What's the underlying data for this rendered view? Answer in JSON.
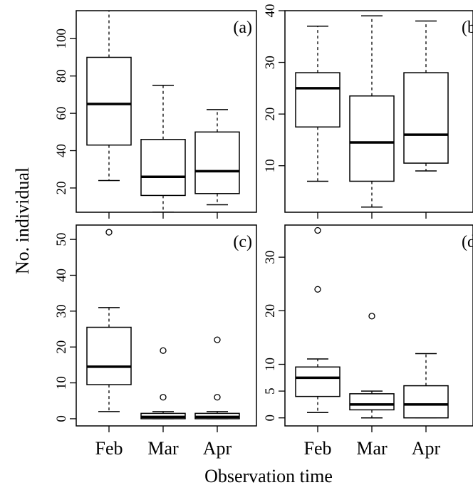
{
  "figure": {
    "xlabel": "Observation time",
    "ylabel": "No. individual",
    "colors": {
      "line": "#000000",
      "background": "#ffffff"
    }
  },
  "chart_data": [
    {
      "type": "boxplot",
      "panel": "(a)",
      "categories": [
        "Feb",
        "Mar",
        "Apr"
      ],
      "ylim": [
        7,
        115
      ],
      "yticks": [
        20,
        40,
        60,
        80,
        100
      ],
      "boxes": [
        {
          "category": "Feb",
          "whisker_low": 24,
          "q1": 43,
          "median": 65,
          "q3": 90,
          "whisker_high": 121,
          "outliers": []
        },
        {
          "category": "Mar",
          "whisker_low": 7,
          "q1": 16,
          "median": 26,
          "q3": 46,
          "whisker_high": 75,
          "outliers": []
        },
        {
          "category": "Apr",
          "whisker_low": 11,
          "q1": 17,
          "median": 29,
          "q3": 50,
          "whisker_high": 62,
          "outliers": []
        }
      ]
    },
    {
      "type": "boxplot",
      "panel": "(b)",
      "categories": [
        "Feb",
        "Mar",
        "Apr"
      ],
      "ylim": [
        1,
        40
      ],
      "yticks": [
        10,
        20,
        30,
        40
      ],
      "boxes": [
        {
          "category": "Feb",
          "whisker_low": 7,
          "q1": 17.5,
          "median": 25,
          "q3": 28,
          "whisker_high": 37,
          "outliers": []
        },
        {
          "category": "Mar",
          "whisker_low": 2,
          "q1": 7,
          "median": 14.5,
          "q3": 23.5,
          "whisker_high": 39,
          "outliers": []
        },
        {
          "category": "Apr",
          "whisker_low": 9,
          "q1": 10.5,
          "median": 16,
          "q3": 28,
          "whisker_high": 38,
          "outliers": []
        }
      ]
    },
    {
      "type": "boxplot",
      "panel": "(c)",
      "categories": [
        "Feb",
        "Mar",
        "Apr"
      ],
      "ylim": [
        -2,
        54
      ],
      "yticks": [
        0,
        10,
        20,
        30,
        40,
        50
      ],
      "boxes": [
        {
          "category": "Feb",
          "whisker_low": 2,
          "q1": 9.5,
          "median": 14.5,
          "q3": 25.5,
          "whisker_high": 31,
          "outliers": [
            52
          ]
        },
        {
          "category": "Mar",
          "whisker_low": 0,
          "q1": 0,
          "median": 0.5,
          "q3": 1.5,
          "whisker_high": 2,
          "outliers": [
            6,
            19
          ]
        },
        {
          "category": "Apr",
          "whisker_low": 0,
          "q1": 0,
          "median": 0.5,
          "q3": 1.5,
          "whisker_high": 2,
          "outliers": [
            6,
            22
          ]
        }
      ]
    },
    {
      "type": "boxplot",
      "panel": "(d)",
      "categories": [
        "Feb",
        "Mar",
        "Apr"
      ],
      "ylim": [
        -1.5,
        36
      ],
      "yticks": [
        0,
        5,
        10,
        20,
        30
      ],
      "boxes": [
        {
          "category": "Feb",
          "whisker_low": 1,
          "q1": 4,
          "median": 7.5,
          "q3": 9.5,
          "whisker_high": 11,
          "outliers": [
            24,
            35
          ]
        },
        {
          "category": "Mar",
          "whisker_low": 0,
          "q1": 1.5,
          "median": 2.5,
          "q3": 4.5,
          "whisker_high": 5,
          "outliers": [
            19
          ]
        },
        {
          "category": "Apr",
          "whisker_low": 0,
          "q1": 0,
          "median": 2.5,
          "q3": 6,
          "whisker_high": 12,
          "outliers": []
        }
      ]
    }
  ]
}
